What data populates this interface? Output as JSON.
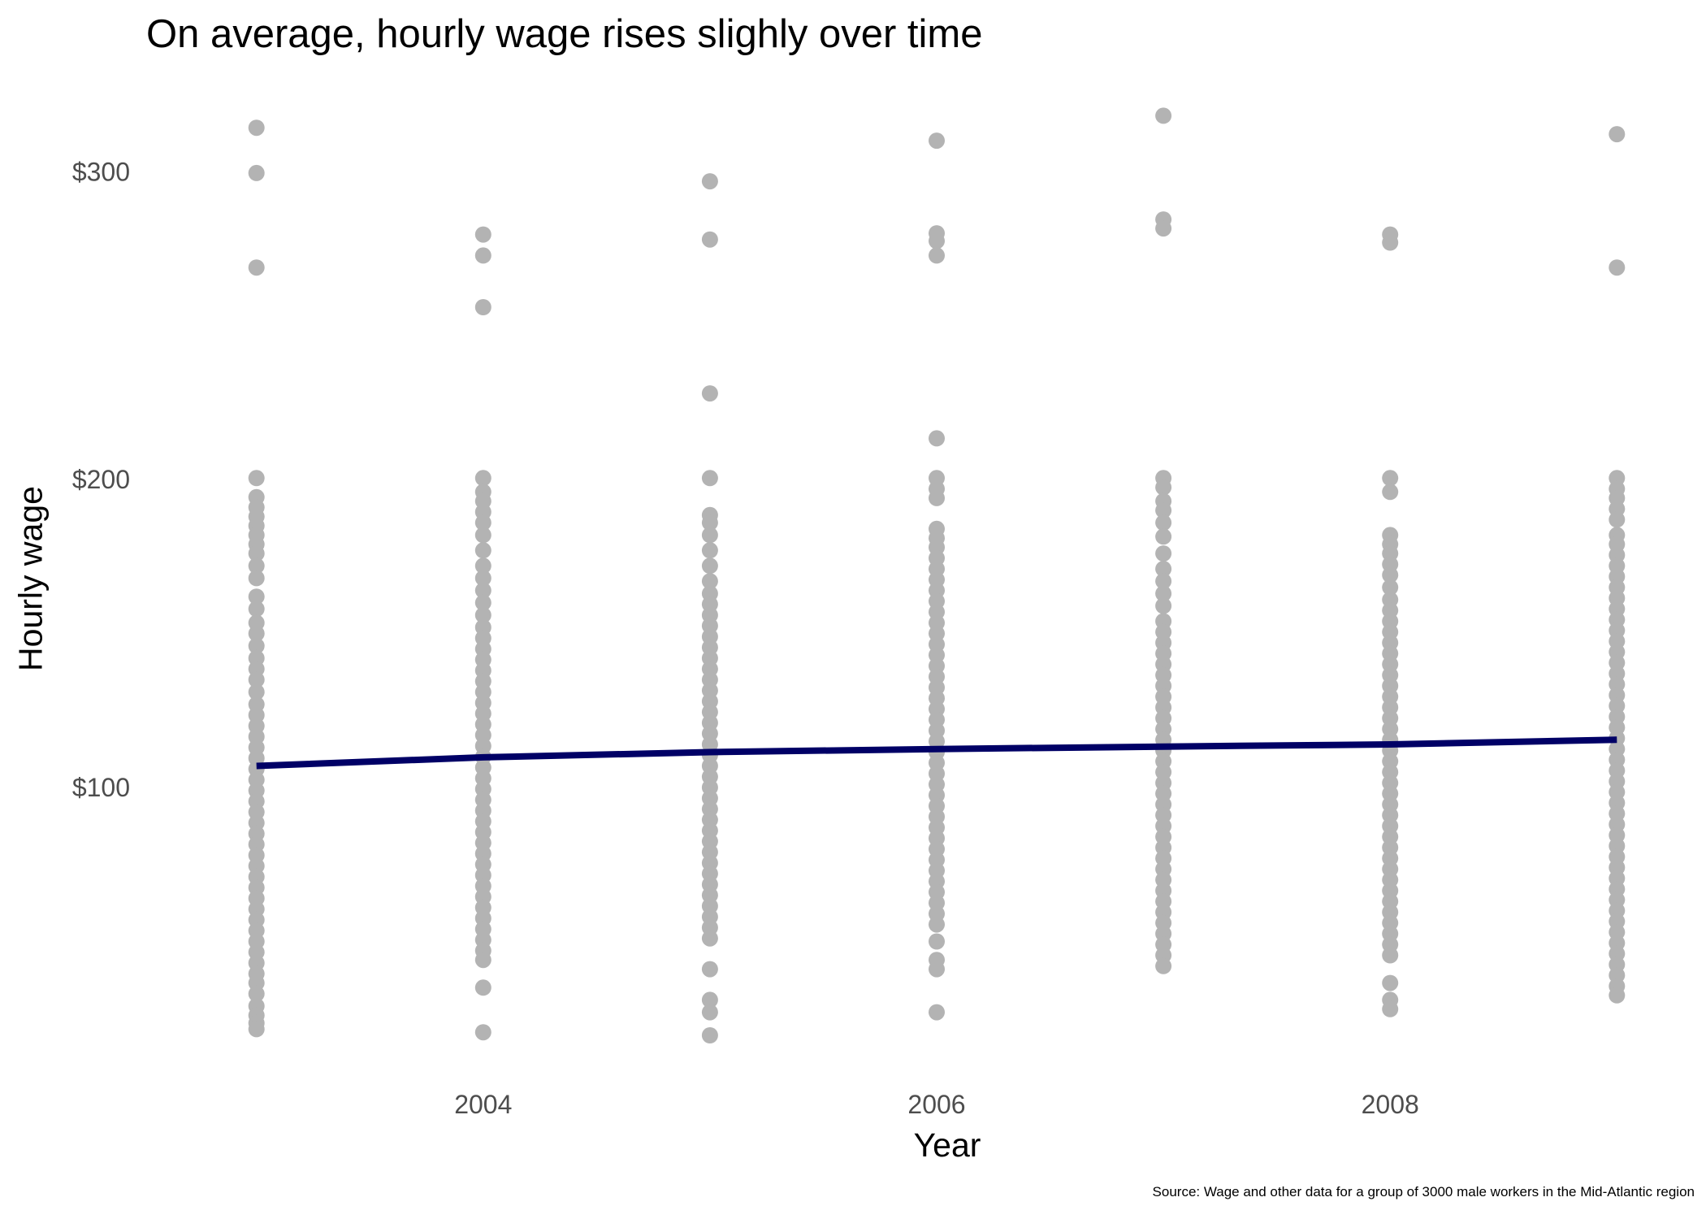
{
  "chart_data": {
    "type": "scatter",
    "title": "On average, hourly wage rises slighly over time",
    "caption": "Source: Wage and other data for a group of 3000 male workers in the Mid-Atlantic region",
    "xlabel": "Year",
    "ylabel": "Hourly wage",
    "xlim": [
      2002.7,
      2009.3
    ],
    "ylim": [
      10,
      322
    ],
    "x_ticks": [
      2004,
      2006,
      2008
    ],
    "x_tick_labels": [
      "2004",
      "2006",
      "2008"
    ],
    "y_ticks": [
      100,
      200,
      300
    ],
    "y_tick_labels": [
      "$100",
      "$200",
      "$300"
    ],
    "grid": false,
    "legend": "none",
    "series": [
      {
        "type": "scatter",
        "color": "#b3b3b3",
        "points": [
          {
            "x": 2003,
            "y": [
              314.3,
              299.6,
              268.9,
              200.5,
              194.3,
              191.0,
              188.0,
              185.0,
              182.0,
              179.0,
              176.0,
              172.0,
              168.0,
              162.0,
              158.0,
              153.5,
              150.0,
              146.0,
              142.0,
              138.5,
              135.0,
              131.0,
              127.0,
              123.5,
              120.0,
              116.5,
              113.0,
              109.5,
              106.0,
              102.5,
              99.0,
              95.5,
              92.0,
              88.5,
              85.0,
              81.5,
              78.0,
              74.5,
              71.0,
              67.5,
              64.0,
              60.5,
              57.0,
              53.5,
              50.0,
              46.5,
              43.0,
              39.5,
              36.5,
              33.0,
              29.0,
              26.0,
              23.5,
              21.5
            ]
          },
          {
            "x": 2004,
            "y": [
              279.6,
              272.8,
              256.0,
              200.5,
              196.0,
              193.0,
              189.5,
              186.0,
              182.0,
              177.0,
              172.0,
              168.0,
              164.0,
              160.0,
              156.0,
              152.0,
              148.5,
              145.0,
              141.5,
              138.0,
              134.5,
              131.0,
              127.5,
              124.0,
              120.5,
              117.0,
              113.5,
              110.0,
              106.5,
              103.0,
              99.5,
              96.0,
              92.5,
              89.0,
              85.5,
              82.0,
              78.5,
              75.0,
              71.5,
              68.0,
              64.5,
              61.0,
              57.5,
              54.0,
              50.5,
              47.0,
              44.0,
              35.0,
              20.5
            ]
          },
          {
            "x": 2005,
            "y": [
              296.9,
              278.0,
              228.0,
              200.5,
              188.5,
              186.0,
              182.0,
              177.0,
              172.0,
              167.0,
              163.0,
              159.5,
              156.0,
              152.5,
              149.0,
              145.5,
              142.0,
              138.5,
              135.0,
              131.5,
              128.0,
              124.5,
              121.0,
              117.5,
              114.0,
              110.5,
              107.0,
              103.5,
              100.0,
              96.5,
              93.0,
              89.5,
              86.0,
              82.5,
              79.0,
              75.5,
              72.0,
              68.5,
              65.0,
              61.5,
              58.0,
              54.5,
              51.0,
              41.0,
              31.0,
              27.0,
              19.5
            ]
          },
          {
            "x": 2006,
            "y": [
              310.1,
              280.0,
              277.5,
              272.8,
              213.4,
              200.5,
              197.0,
              194.0,
              184.0,
              181.0,
              178.0,
              174.5,
              171.0,
              167.5,
              164.0,
              160.5,
              157.0,
              153.5,
              150.0,
              146.5,
              143.0,
              139.5,
              136.0,
              132.5,
              129.0,
              125.5,
              122.0,
              118.5,
              115.0,
              111.5,
              108.0,
              104.5,
              101.0,
              97.5,
              94.0,
              90.5,
              87.0,
              83.5,
              80.0,
              76.5,
              73.0,
              69.5,
              66.0,
              62.5,
              59.0,
              55.5,
              50.0,
              44.0,
              41.0,
              27.0
            ]
          },
          {
            "x": 2007,
            "y": [
              318.2,
              284.5,
              281.6,
              200.5,
              197.5,
              193.0,
              190.0,
              186.0,
              181.5,
              176.0,
              171.0,
              167.0,
              163.0,
              159.0,
              154.0,
              150.5,
              147.0,
              143.5,
              140.0,
              136.5,
              133.0,
              129.5,
              126.0,
              122.5,
              119.0,
              115.5,
              112.0,
              108.5,
              105.0,
              101.5,
              98.0,
              94.5,
              91.0,
              87.5,
              84.0,
              80.5,
              77.0,
              73.5,
              70.0,
              66.5,
              63.0,
              59.5,
              56.0,
              52.5,
              49.0,
              45.5,
              42.0
            ]
          },
          {
            "x": 2008,
            "y": [
              279.6,
              277.0,
              200.5,
              196.0,
              182.0,
              179.0,
              176.0,
              172.5,
              169.0,
              165.0,
              161.0,
              157.5,
              154.0,
              150.5,
              147.0,
              143.5,
              140.0,
              136.5,
              133.0,
              129.5,
              126.0,
              122.5,
              119.0,
              115.5,
              112.0,
              108.5,
              105.0,
              101.5,
              98.0,
              94.5,
              91.0,
              87.5,
              84.0,
              80.5,
              77.0,
              73.5,
              70.0,
              66.5,
              63.0,
              59.5,
              56.0,
              52.5,
              49.0,
              45.5,
              36.5,
              31.0,
              28.0
            ]
          },
          {
            "x": 2009,
            "y": [
              312.2,
              268.9,
              200.5,
              197.0,
              194.0,
              190.5,
              187.0,
              182.0,
              179.0,
              175.5,
              172.0,
              168.5,
              165.0,
              161.5,
              158.0,
              154.5,
              151.0,
              147.5,
              144.0,
              140.5,
              137.0,
              133.5,
              130.0,
              126.5,
              123.0,
              119.5,
              116.0,
              112.5,
              109.0,
              105.5,
              102.0,
              98.5,
              95.0,
              91.5,
              88.0,
              84.5,
              81.0,
              77.5,
              74.0,
              70.5,
              67.0,
              63.5,
              60.0,
              56.5,
              53.0,
              49.5,
              46.0,
              42.5,
              39.0,
              35.5,
              32.5
            ]
          }
        ]
      },
      {
        "type": "line",
        "color": "#000066",
        "x": [
          2003,
          2004,
          2005,
          2006,
          2007,
          2008,
          2009
        ],
        "y": [
          107.0,
          109.8,
          111.5,
          112.5,
          113.3,
          114.0,
          115.5
        ]
      }
    ]
  }
}
